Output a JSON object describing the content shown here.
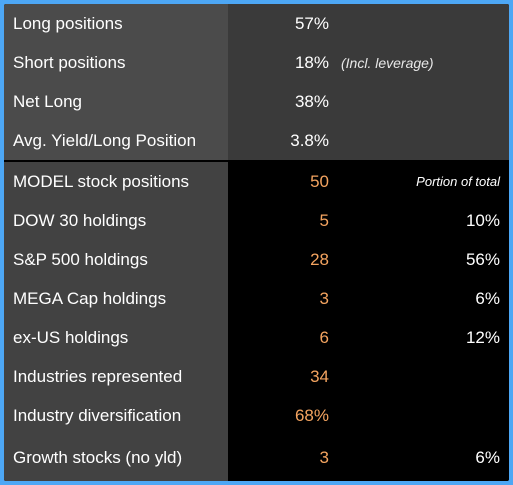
{
  "top_rows": [
    {
      "label": "Long positions",
      "value": "57%",
      "note": ""
    },
    {
      "label": "Short positions",
      "value": "18%",
      "note": "(Incl. leverage)"
    },
    {
      "label": "Net Long",
      "value": "38%",
      "note": ""
    },
    {
      "label": "Avg. Yield/Long Position",
      "value": "3.8%",
      "note": ""
    }
  ],
  "bottom_rows": [
    {
      "label": "MODEL stock positions",
      "value": "50",
      "portion": "Portion of total"
    },
    {
      "label": "DOW 30 holdings",
      "value": "5",
      "portion": "10%"
    },
    {
      "label": "S&P 500 holdings",
      "value": "28",
      "portion": "56%"
    },
    {
      "label": "MEGA Cap holdings",
      "value": "3",
      "portion": "6%"
    },
    {
      "label": "ex-US holdings",
      "value": "6",
      "portion": "12%"
    },
    {
      "label": "Industries represented",
      "value": "34",
      "portion": ""
    },
    {
      "label": "Industry diversification",
      "value": "68%",
      "portion": ""
    },
    {
      "label": "Growth stocks (no yld)",
      "value": "3",
      "portion": "6%"
    }
  ],
  "colors": {
    "frame_border": "#4da7f5",
    "highlight_value": "#f4a460",
    "label_bg": "#4b4b4b",
    "value_bg_top": "#3a3a3a"
  }
}
